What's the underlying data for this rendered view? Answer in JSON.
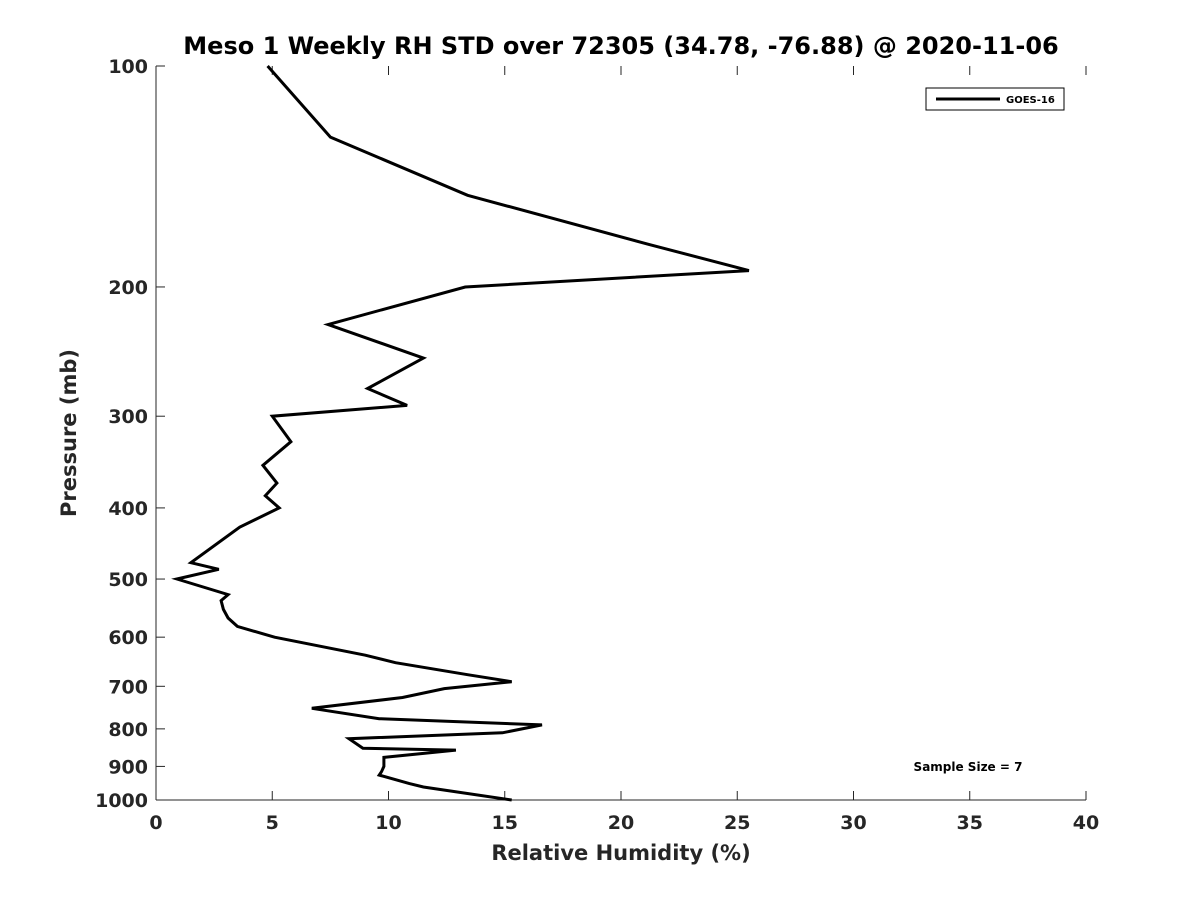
{
  "chart_data": {
    "type": "line",
    "title": "Meso 1 Weekly RH STD over 72305 (34.78, -76.88) @ 2020-11-06",
    "xlabel": "Relative Humidity (%)",
    "ylabel": "Pressure (mb)",
    "xlim": [
      0,
      40
    ],
    "ylim": [
      100,
      1000
    ],
    "y_scale": "log",
    "y_inverted": true,
    "xticks": [
      0,
      5,
      10,
      15,
      20,
      25,
      30,
      35,
      40
    ],
    "yticks": [
      100,
      200,
      300,
      400,
      500,
      600,
      700,
      800,
      900,
      1000
    ],
    "grid": false,
    "legend_position": "top-right",
    "annotation": "Sample Size = 7",
    "series": [
      {
        "name": "GOES-16",
        "color": "#000000",
        "points": [
          [
            4.8,
            100
          ],
          [
            7.5,
            125
          ],
          [
            13.4,
            150
          ],
          [
            21.2,
            175
          ],
          [
            25.5,
            190
          ],
          [
            13.3,
            200
          ],
          [
            7.4,
            225
          ],
          [
            11.5,
            250
          ],
          [
            9.1,
            275
          ],
          [
            10.8,
            290
          ],
          [
            5.0,
            300
          ],
          [
            5.8,
            325
          ],
          [
            4.6,
            350
          ],
          [
            5.2,
            370
          ],
          [
            4.7,
            385
          ],
          [
            5.3,
            400
          ],
          [
            3.6,
            425
          ],
          [
            1.5,
            475
          ],
          [
            2.7,
            485
          ],
          [
            0.9,
            500
          ],
          [
            3.1,
            525
          ],
          [
            2.8,
            535
          ],
          [
            2.9,
            550
          ],
          [
            3.1,
            565
          ],
          [
            3.5,
            580
          ],
          [
            5.1,
            600
          ],
          [
            9.0,
            635
          ],
          [
            10.3,
            650
          ],
          [
            13.4,
            675
          ],
          [
            15.3,
            690
          ],
          [
            12.4,
            705
          ],
          [
            10.6,
            725
          ],
          [
            6.7,
            750
          ],
          [
            9.6,
            775
          ],
          [
            16.6,
            790
          ],
          [
            14.9,
            810
          ],
          [
            8.3,
            825
          ],
          [
            8.9,
            850
          ],
          [
            12.9,
            855
          ],
          [
            9.8,
            875
          ],
          [
            9.8,
            900
          ],
          [
            9.7,
            915
          ],
          [
            9.6,
            925
          ],
          [
            10.9,
            950
          ],
          [
            11.5,
            960
          ],
          [
            15.3,
            1000
          ]
        ]
      }
    ]
  }
}
